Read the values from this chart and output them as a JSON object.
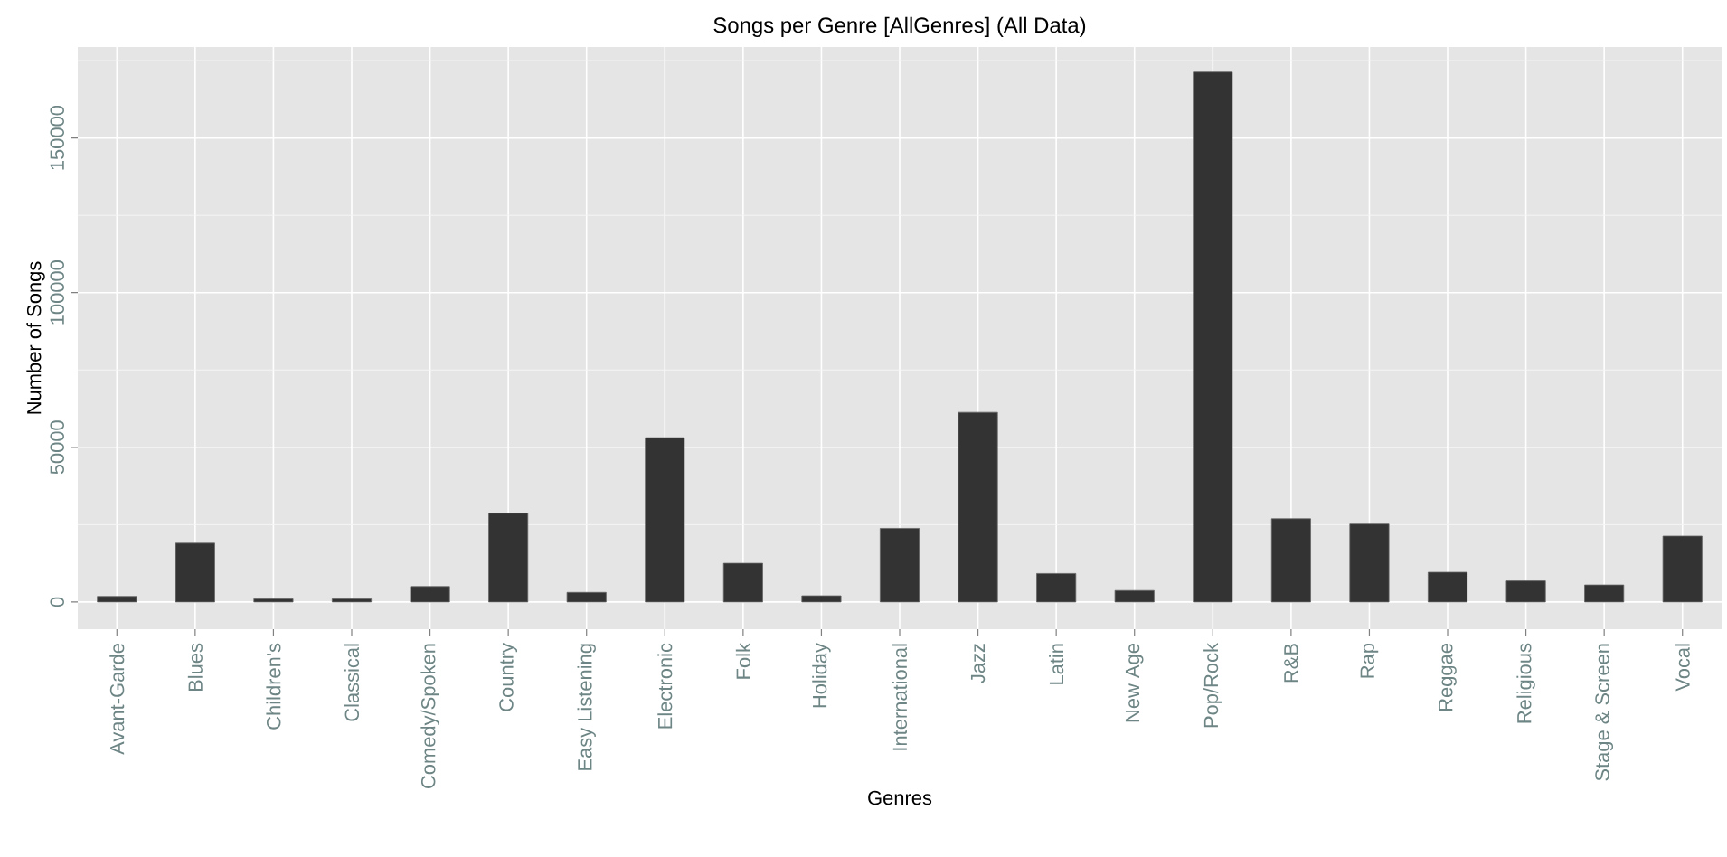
{
  "chart_data": {
    "type": "bar",
    "title": "Songs per Genre [AllGenres] (All Data)",
    "xlabel": "Genres",
    "ylabel": "Number of Songs",
    "categories": [
      "Avant-Garde",
      "Blues",
      "Children's",
      "Classical",
      "Comedy/Spoken",
      "Country",
      "Easy Listening",
      "Electronic",
      "Folk",
      "Holiday",
      "International",
      "Jazz",
      "Latin",
      "New Age",
      "Pop/Rock",
      "R&B",
      "Rap",
      "Reggae",
      "Religious",
      "Stage & Screen",
      "Vocal"
    ],
    "values": [
      1800,
      19000,
      1000,
      1000,
      5000,
      28700,
      3100,
      53100,
      12500,
      2000,
      23800,
      61300,
      9200,
      3700,
      171300,
      26900,
      25200,
      9600,
      6800,
      5500,
      21300
    ],
    "color": "#333333",
    "ylim": [
      -8800,
      179400
    ],
    "yticks": [
      0,
      50000,
      100000,
      150000
    ],
    "grid": true
  }
}
